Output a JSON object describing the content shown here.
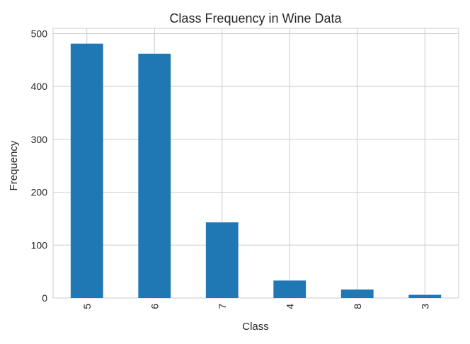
{
  "chart_data": {
    "type": "bar",
    "title": "Class Frequency in Wine Data",
    "xlabel": "Class",
    "ylabel": "Frequency",
    "categories": [
      "5",
      "6",
      "7",
      "4",
      "8",
      "3"
    ],
    "values": [
      481,
      462,
      143,
      33,
      16,
      6
    ],
    "ylim": [
      0,
      510
    ],
    "yticks": [
      0,
      100,
      200,
      300,
      400,
      500
    ],
    "grid": true,
    "bar_color": "#1f77b4",
    "grid_color": "#cccccc",
    "background": "#ffffff"
  }
}
